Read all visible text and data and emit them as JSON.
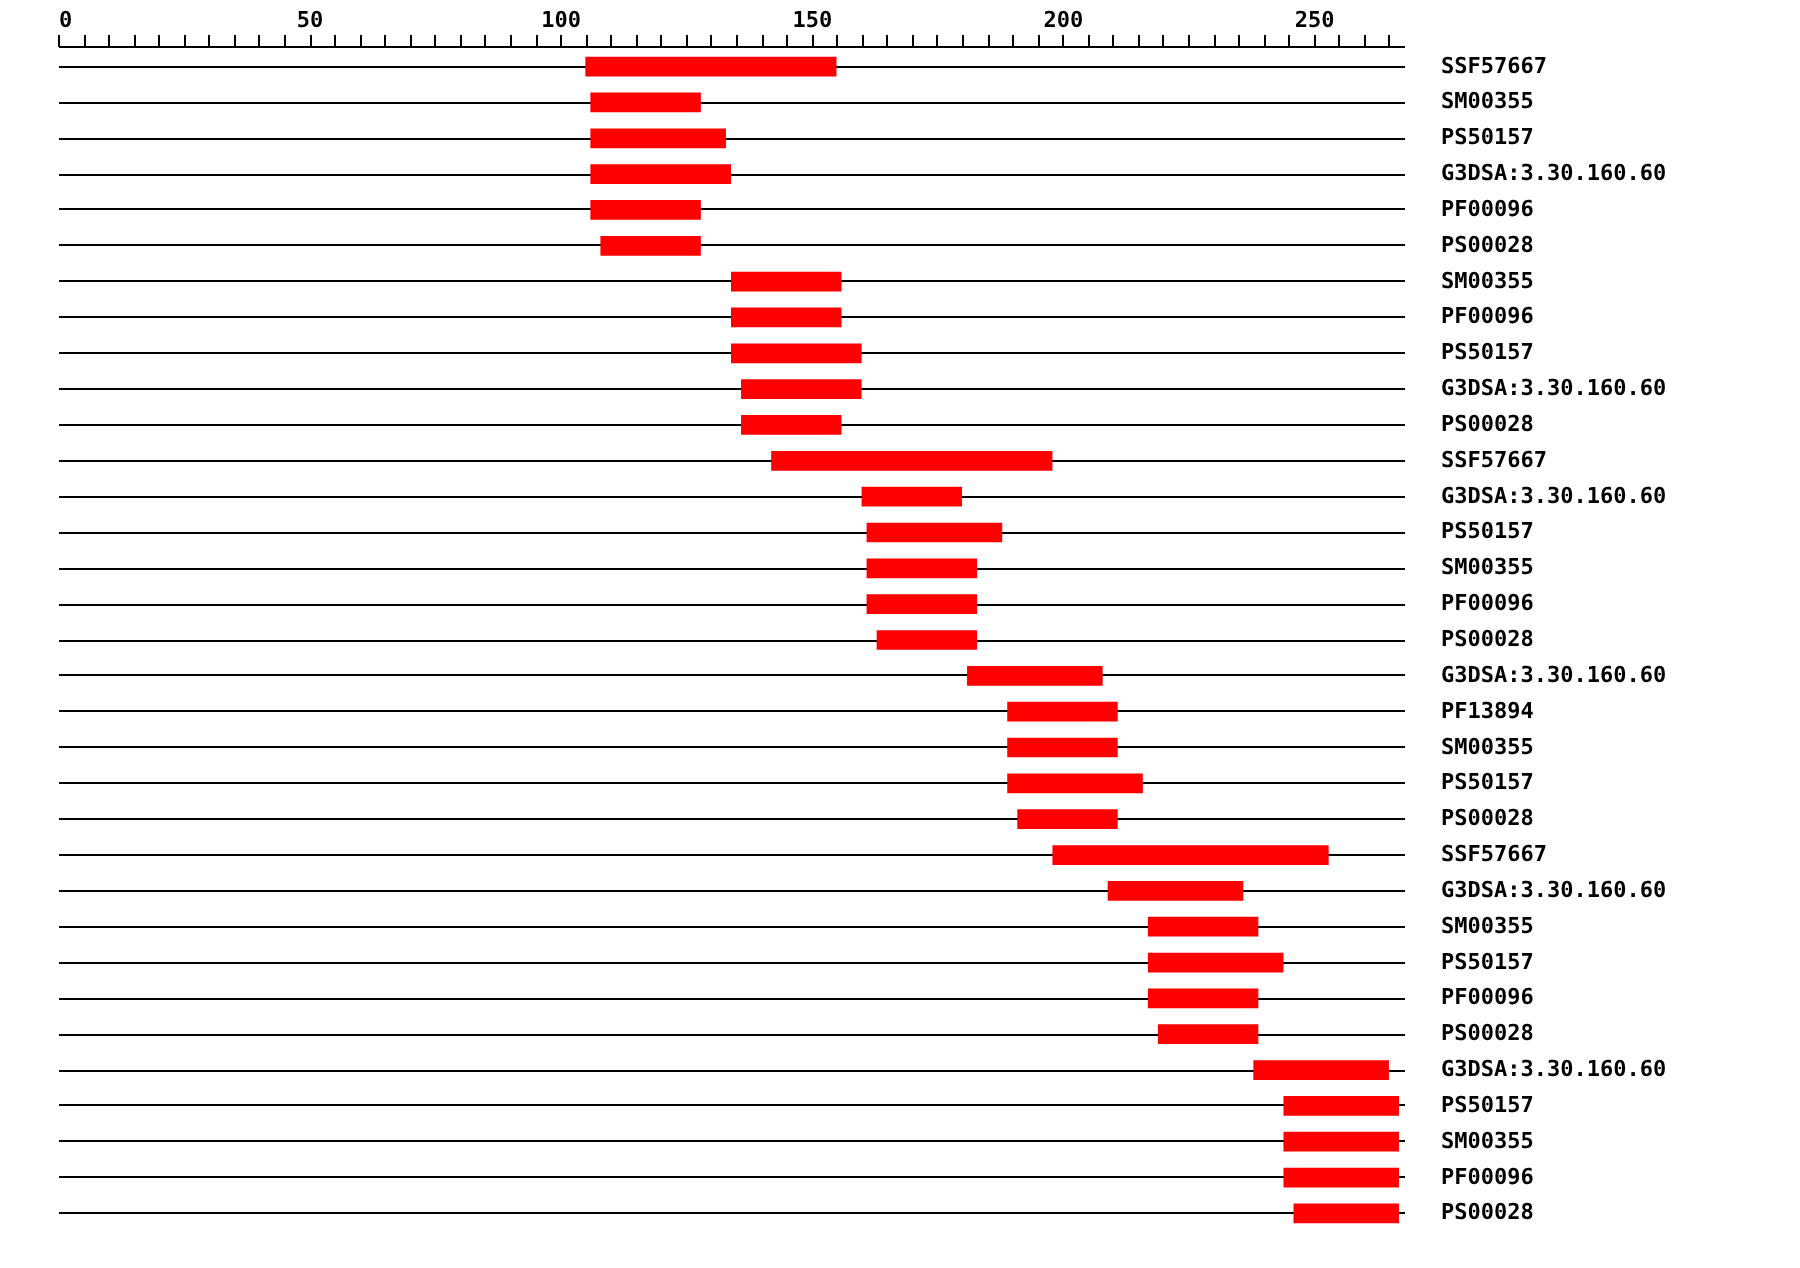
{
  "chart_data": {
    "type": "bar",
    "orientation": "horizontal",
    "color": "#ff0000",
    "grid": "y",
    "categories": [
      "SSF57667",
      "SM00355",
      "PS50157",
      "G3DSA:3.30.160.60",
      "PF00096",
      "PS00028",
      "SM00355",
      "PF00096",
      "PS50157",
      "G3DSA:3.30.160.60",
      "PS00028",
      "SSF57667",
      "G3DSA:3.30.160.60",
      "PS50157",
      "SM00355",
      "PF00096",
      "PS00028",
      "G3DSA:3.30.160.60",
      "PF13894",
      "SM00355",
      "PS50157",
      "PS00028",
      "SSF57667",
      "G3DSA:3.30.160.60",
      "SM00355",
      "PS50157",
      "PF00096",
      "PS00028",
      "G3DSA:3.30.160.60",
      "PS50157",
      "SM00355",
      "PF00096",
      "PS00028"
    ],
    "base": [
      105,
      106,
      106,
      106,
      106,
      108,
      134,
      134,
      134,
      136,
      136,
      142,
      160,
      161,
      161,
      161,
      163,
      181,
      189,
      189,
      189,
      191,
      198,
      209,
      217,
      217,
      217,
      219,
      238,
      244,
      244,
      244,
      246
    ],
    "values": [
      50,
      22,
      27,
      28,
      22,
      20,
      22,
      22,
      26,
      24,
      20,
      56,
      20,
      27,
      22,
      22,
      20,
      27,
      22,
      22,
      27,
      20,
      55,
      27,
      22,
      27,
      22,
      20,
      27,
      23,
      23,
      23,
      21
    ],
    "xlim": [
      0,
      268
    ],
    "xticks": [
      0,
      {
        "value": 5,
        "label": null
      },
      {
        "value": 10,
        "label": null
      },
      {
        "value": 15,
        "label": null
      },
      {
        "value": 20,
        "label": null
      },
      {
        "value": 25,
        "label": null
      },
      {
        "value": 30,
        "label": null
      },
      {
        "value": 35,
        "label": null
      },
      {
        "value": 40,
        "label": null
      },
      {
        "value": 45,
        "label": null
      },
      50,
      {
        "value": 55,
        "label": null
      },
      {
        "value": 60,
        "label": null
      },
      {
        "value": 65,
        "label": null
      },
      {
        "value": 70,
        "label": null
      },
      {
        "value": 75,
        "label": null
      },
      {
        "value": 80,
        "label": null
      },
      {
        "value": 85,
        "label": null
      },
      {
        "value": 90,
        "label": null
      },
      {
        "value": 95,
        "label": null
      },
      100,
      {
        "value": 105,
        "label": null
      },
      {
        "value": 110,
        "label": null
      },
      {
        "value": 115,
        "label": null
      },
      {
        "value": 120,
        "label": null
      },
      {
        "value": 125,
        "label": null
      },
      {
        "value": 130,
        "label": null
      },
      {
        "value": 135,
        "label": null
      },
      {
        "value": 140,
        "label": null
      },
      {
        "value": 145,
        "label": null
      },
      150,
      {
        "value": 155,
        "label": null
      },
      {
        "value": 160,
        "label": null
      },
      {
        "value": 165,
        "label": null
      },
      {
        "value": 170,
        "label": null
      },
      {
        "value": 175,
        "label": null
      },
      {
        "value": 180,
        "label": null
      },
      {
        "value": 185,
        "label": null
      },
      {
        "value": 190,
        "label": null
      },
      {
        "value": 195,
        "label": null
      },
      200,
      {
        "value": 205,
        "label": null
      },
      {
        "value": 210,
        "label": null
      },
      {
        "value": 215,
        "label": null
      },
      {
        "value": 220,
        "label": null
      },
      {
        "value": 225,
        "label": null
      },
      {
        "value": 230,
        "label": null
      },
      {
        "value": 235,
        "label": null
      },
      {
        "value": 240,
        "label": null
      },
      {
        "value": 245,
        "label": null
      },
      250,
      {
        "value": 255,
        "label": null
      },
      {
        "value": 260,
        "label": null
      },
      {
        "value": 265,
        "label": null
      }
    ]
  }
}
